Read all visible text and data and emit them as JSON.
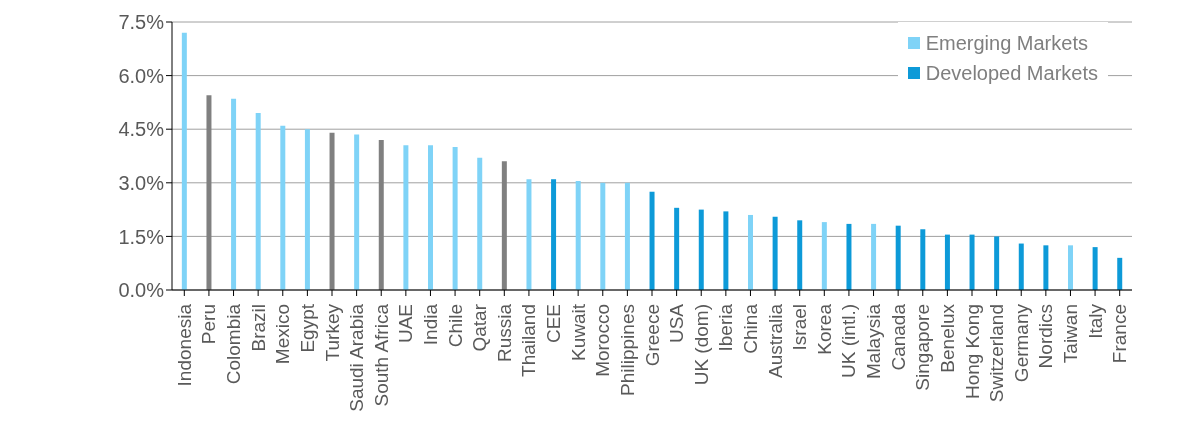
{
  "chart_data": {
    "type": "bar",
    "stacked": true,
    "categories": [
      "Indonesia",
      "Peru",
      "Colombia",
      "Brazil",
      "Mexico",
      "Egypt",
      "Turkey",
      "Saudi Arabia",
      "South Africa",
      "UAE",
      "India",
      "Chile",
      "Qatar",
      "Russia",
      "Thailand",
      "CEE",
      "Kuwait",
      "Morocco",
      "Philippines",
      "Greece",
      "USA",
      "UK (dom)",
      "Iberia",
      "China",
      "Australia",
      "Israel",
      "Korea",
      "UK (intl.)",
      "Malaysia",
      "Canada",
      "Singapore",
      "Benelux",
      "Hong Kong",
      "Switzerland",
      "Germany",
      "Nordics",
      "Taiwan",
      "Italy",
      "France"
    ],
    "series": [
      {
        "name": "Emerging Markets",
        "color": "#7fd3f7",
        "values": [
          7.2,
          null,
          5.35,
          4.95,
          4.6,
          4.5,
          null,
          4.35,
          null,
          4.05,
          4.05,
          4.0,
          3.7,
          null,
          3.1,
          null,
          3.05,
          3.0,
          3.0,
          null,
          null,
          null,
          null,
          2.1,
          null,
          null,
          1.9,
          null,
          1.85,
          null,
          null,
          null,
          null,
          null,
          null,
          null,
          1.25,
          null,
          null
        ]
      },
      {
        "name": "Developed Markets",
        "color": "#0d9ad8",
        "values": [
          null,
          null,
          null,
          null,
          null,
          null,
          null,
          null,
          null,
          null,
          null,
          null,
          null,
          null,
          null,
          3.1,
          null,
          null,
          null,
          2.75,
          2.3,
          2.25,
          2.2,
          null,
          2.05,
          1.95,
          null,
          1.85,
          null,
          1.8,
          1.7,
          1.55,
          1.55,
          1.5,
          1.3,
          1.25,
          null,
          1.2,
          0.9
        ]
      },
      {
        "color": "#808080",
        "values": [
          null,
          5.45,
          null,
          null,
          null,
          null,
          4.4,
          null,
          4.2,
          null,
          null,
          null,
          null,
          3.6,
          null,
          null,
          null,
          null,
          null,
          null,
          null,
          null,
          null,
          null,
          null,
          null,
          null,
          null,
          null,
          null,
          null,
          null,
          null,
          null,
          null,
          null,
          null,
          null,
          null
        ]
      }
    ],
    "ylim": [
      0,
      7.5
    ],
    "yticks": [
      {
        "value": 0,
        "label": "0.0%"
      },
      {
        "value": 1.5,
        "label": "1.5%"
      },
      {
        "value": 3,
        "label": "3.0%"
      },
      {
        "value": 4.5,
        "label": "4.5%"
      },
      {
        "value": 6,
        "label": "6.0%"
      },
      {
        "value": 7.5,
        "label": "7.5%"
      }
    ],
    "grid": "y",
    "legend": "top right"
  }
}
